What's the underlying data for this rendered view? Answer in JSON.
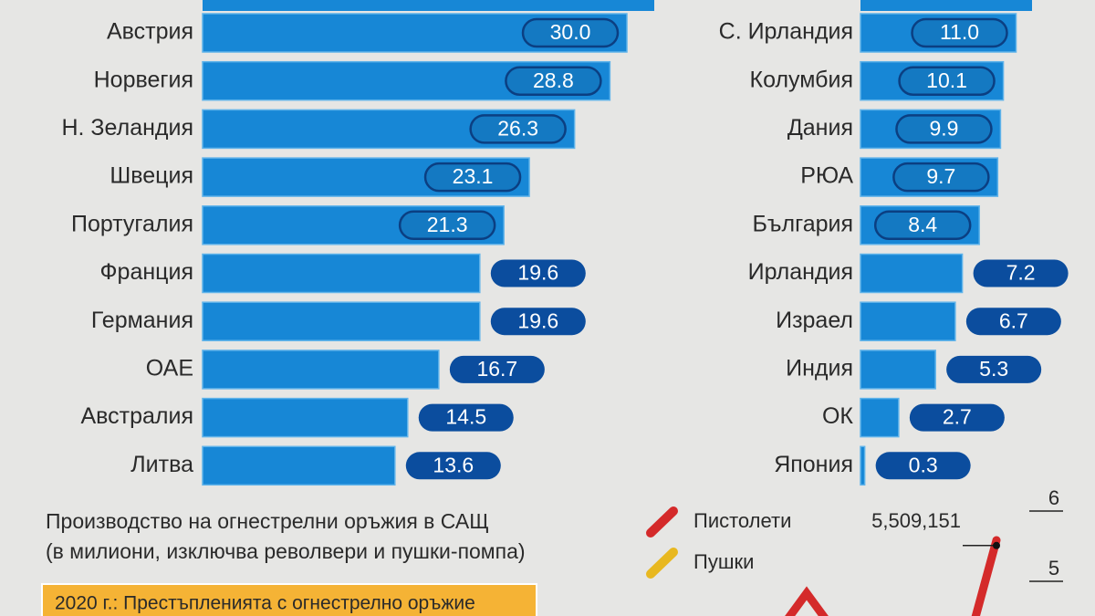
{
  "chart_data": [
    {
      "type": "bar",
      "orientation": "horizontal",
      "color": "#1787d6",
      "categories": [
        "Австрия",
        "Норвегия",
        "Н. Зеландия",
        "Швеция",
        "Португалия",
        "Франция",
        "Германия",
        "ОАЕ",
        "Австралия",
        "Литва"
      ],
      "values": [
        30.0,
        28.8,
        26.3,
        23.1,
        21.3,
        19.6,
        19.6,
        16.7,
        14.5,
        13.6
      ],
      "value_labels": [
        "30.0",
        "28.8",
        "26.3",
        "23.1",
        "21.3",
        "19.6",
        "19.6",
        "16.7",
        "14.5",
        "13.6"
      ]
    },
    {
      "type": "bar",
      "orientation": "horizontal",
      "color": "#1787d6",
      "categories": [
        "С. Ирландия",
        "Колумбия",
        "Дания",
        "РЮА",
        "България",
        "Ирландия",
        "Израел",
        "Индия",
        "ОК",
        "Япония"
      ],
      "values": [
        11.0,
        10.1,
        9.9,
        9.7,
        8.4,
        7.2,
        6.7,
        5.3,
        2.7,
        0.3
      ],
      "value_labels": [
        "11.0",
        "10.1",
        "9.9",
        "9.7",
        "8.4",
        "7.2",
        "6.7",
        "5.3",
        "2.7",
        "0.3"
      ]
    },
    {
      "type": "line",
      "title": "Производство на огнестрелни оръжия в САЩ",
      "subtitle": "(в милиони, изключва револвери и пушки-помпа)",
      "note": "2020 г.: Престъпленията с огнестрелно оръжие",
      "yticks": [
        5,
        6
      ],
      "series": [
        {
          "name": "Пистолети",
          "color": "#d42a2a",
          "values": [
            5.509151
          ],
          "value_labels": [
            "5,509,151"
          ]
        },
        {
          "name": "Пушки",
          "color": "#e8b820"
        }
      ]
    }
  ]
}
